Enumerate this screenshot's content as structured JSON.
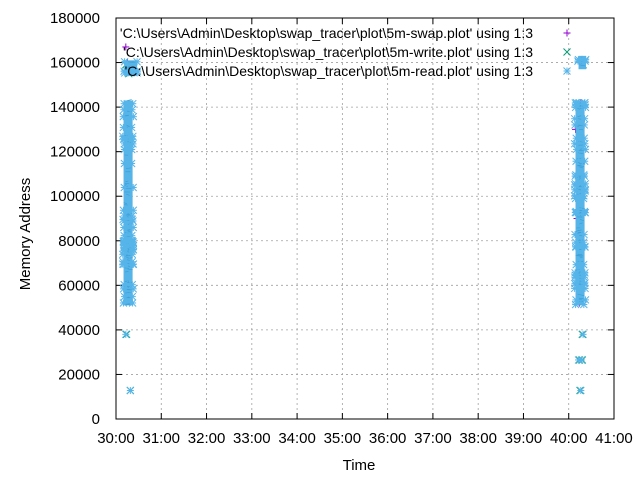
{
  "chart_data": {
    "type": "scatter",
    "title": "",
    "xlabel": "Time",
    "ylabel": "Memory Address",
    "x_range_seconds": [
      1800,
      2460
    ],
    "xticks": [
      {
        "value": 1800,
        "label": "30:00"
      },
      {
        "value": 1860,
        "label": "31:00"
      },
      {
        "value": 1920,
        "label": "32:00"
      },
      {
        "value": 1980,
        "label": "33:00"
      },
      {
        "value": 2040,
        "label": "34:00"
      },
      {
        "value": 2100,
        "label": "35:00"
      },
      {
        "value": 2160,
        "label": "36:00"
      },
      {
        "value": 2220,
        "label": "37:00"
      },
      {
        "value": 2280,
        "label": "38:00"
      },
      {
        "value": 2340,
        "label": "39:00"
      },
      {
        "value": 2400,
        "label": "40:00"
      },
      {
        "value": 2460,
        "label": "41:00"
      }
    ],
    "ylim": [
      0,
      180000
    ],
    "yticks": [
      {
        "value": 0,
        "label": "0"
      },
      {
        "value": 20000,
        "label": "20000"
      },
      {
        "value": 40000,
        "label": "40000"
      },
      {
        "value": 60000,
        "label": "60000"
      },
      {
        "value": 80000,
        "label": "80000"
      },
      {
        "value": 100000,
        "label": "100000"
      },
      {
        "value": 120000,
        "label": "120000"
      },
      {
        "value": 140000,
        "label": "140000"
      },
      {
        "value": 160000,
        "label": "160000"
      },
      {
        "value": 180000,
        "label": "180000"
      }
    ],
    "grid": true,
    "legend_position": "top-right",
    "series": [
      {
        "name": "'C:\\Users\\Admin\\Desktop\\swap_tracer\\plot\\5m-swap.plot' using 1:3",
        "marker": "plus",
        "color": "#9400d3",
        "points": [
          [
            1813,
            167000
          ],
          [
            1815,
            160000
          ],
          [
            1816,
            100000
          ],
          [
            1818,
            60000
          ],
          [
            2409,
            130000
          ],
          [
            2411,
            90000
          ],
          [
            2413,
            60000
          ],
          [
            2414,
            52000
          ],
          [
            2416,
            142000
          ],
          [
            2418,
            161000
          ]
        ]
      },
      {
        "name": "'C:\\Users\\Admin\\Desktop\\swap_tracer\\plot\\5m-write.plot' using 1:3",
        "marker": "cross",
        "color": "#009e73",
        "points": [
          [
            1814,
            38000
          ],
          [
            1819,
            12800
          ],
          [
            1813,
            159000
          ],
          [
            1817,
            155000
          ],
          [
            2414,
            26500
          ],
          [
            2418,
            26500
          ],
          [
            2415,
            12800
          ],
          [
            2418,
            38000
          ],
          [
            2419,
            159000
          ]
        ]
      },
      {
        "name": "'C:\\Users\\Admin\\Desktop\\swap_tracer\\plot\\5m-read.plot' using 1:3",
        "marker": "star",
        "color": "#56b4e9",
        "bands": [
          {
            "x_from": 1810,
            "x_to": 1822,
            "y_from": 51000,
            "y_to": 143000
          },
          {
            "x_from": 1811,
            "x_to": 1828,
            "y_from": 154000,
            "y_to": 161000
          },
          {
            "x_from": 2409,
            "x_to": 2421,
            "y_from": 51000,
            "y_to": 143000
          },
          {
            "x_from": 2413,
            "x_to": 2423,
            "y_from": 157000,
            "y_to": 163000
          }
        ],
        "points": [
          [
            1813,
            38000
          ],
          [
            1819,
            12800
          ],
          [
            2413,
            26500
          ],
          [
            2417,
            26500
          ],
          [
            2416,
            12800
          ],
          [
            2419,
            38000
          ]
        ]
      }
    ]
  }
}
